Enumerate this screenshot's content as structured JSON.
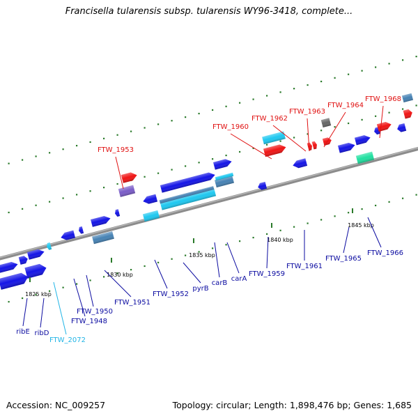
{
  "title": "Francisella tularensis subsp. tularensis WY96-3418, complete...",
  "footer": {
    "accession": "Accession: NC_009257",
    "summary": "Topology: circular; Length: 1,898,476 bp; Genes: 1,685"
  },
  "colors": {
    "backbone": "#8c8c8c",
    "gene_blue": "#1414e6",
    "gene_cyan": "#1ec8f0",
    "gene_red": "#f01414",
    "gene_steel": "#4682b4",
    "gene_purple": "#7a5cc8",
    "gene_gray": "#666666",
    "gene_teal": "#20e0a0",
    "label_dark": "#0a0aa0",
    "label_red": "#e01010",
    "label_cyan": "#20b4e6",
    "tick": "#2a7a2a"
  },
  "ticks": [
    {
      "label": "1825 kbp"
    },
    {
      "label": "1830 kbp"
    },
    {
      "label": "1835 kbp"
    },
    {
      "label": "1840 kbp"
    },
    {
      "label": "1845 kbp"
    }
  ],
  "gene_labels": [
    {
      "text": "ribE",
      "color": "label_dark"
    },
    {
      "text": "ribD",
      "color": "label_dark"
    },
    {
      "text": "FTW_2072",
      "color": "label_cyan"
    },
    {
      "text": "FTW_1948",
      "color": "label_dark"
    },
    {
      "text": "FTW_1950",
      "color": "label_dark"
    },
    {
      "text": "FTW_1951",
      "color": "label_dark"
    },
    {
      "text": "FTW_1952",
      "color": "label_dark"
    },
    {
      "text": "pyrB",
      "color": "label_dark"
    },
    {
      "text": "carB",
      "color": "label_dark"
    },
    {
      "text": "carA",
      "color": "label_dark"
    },
    {
      "text": "FTW_1959",
      "color": "label_dark"
    },
    {
      "text": "FTW_1961",
      "color": "label_dark"
    },
    {
      "text": "FTW_1965",
      "color": "label_dark"
    },
    {
      "text": "FTW_1966",
      "color": "label_dark"
    },
    {
      "text": "FTW_1953",
      "color": "label_red"
    },
    {
      "text": "FTW_1960",
      "color": "label_red"
    },
    {
      "text": "FTW_1962",
      "color": "label_red"
    },
    {
      "text": "FTW_1963",
      "color": "label_red"
    },
    {
      "text": "FTW_1964",
      "color": "label_red"
    },
    {
      "text": "FTW_1968",
      "color": "label_red"
    }
  ]
}
